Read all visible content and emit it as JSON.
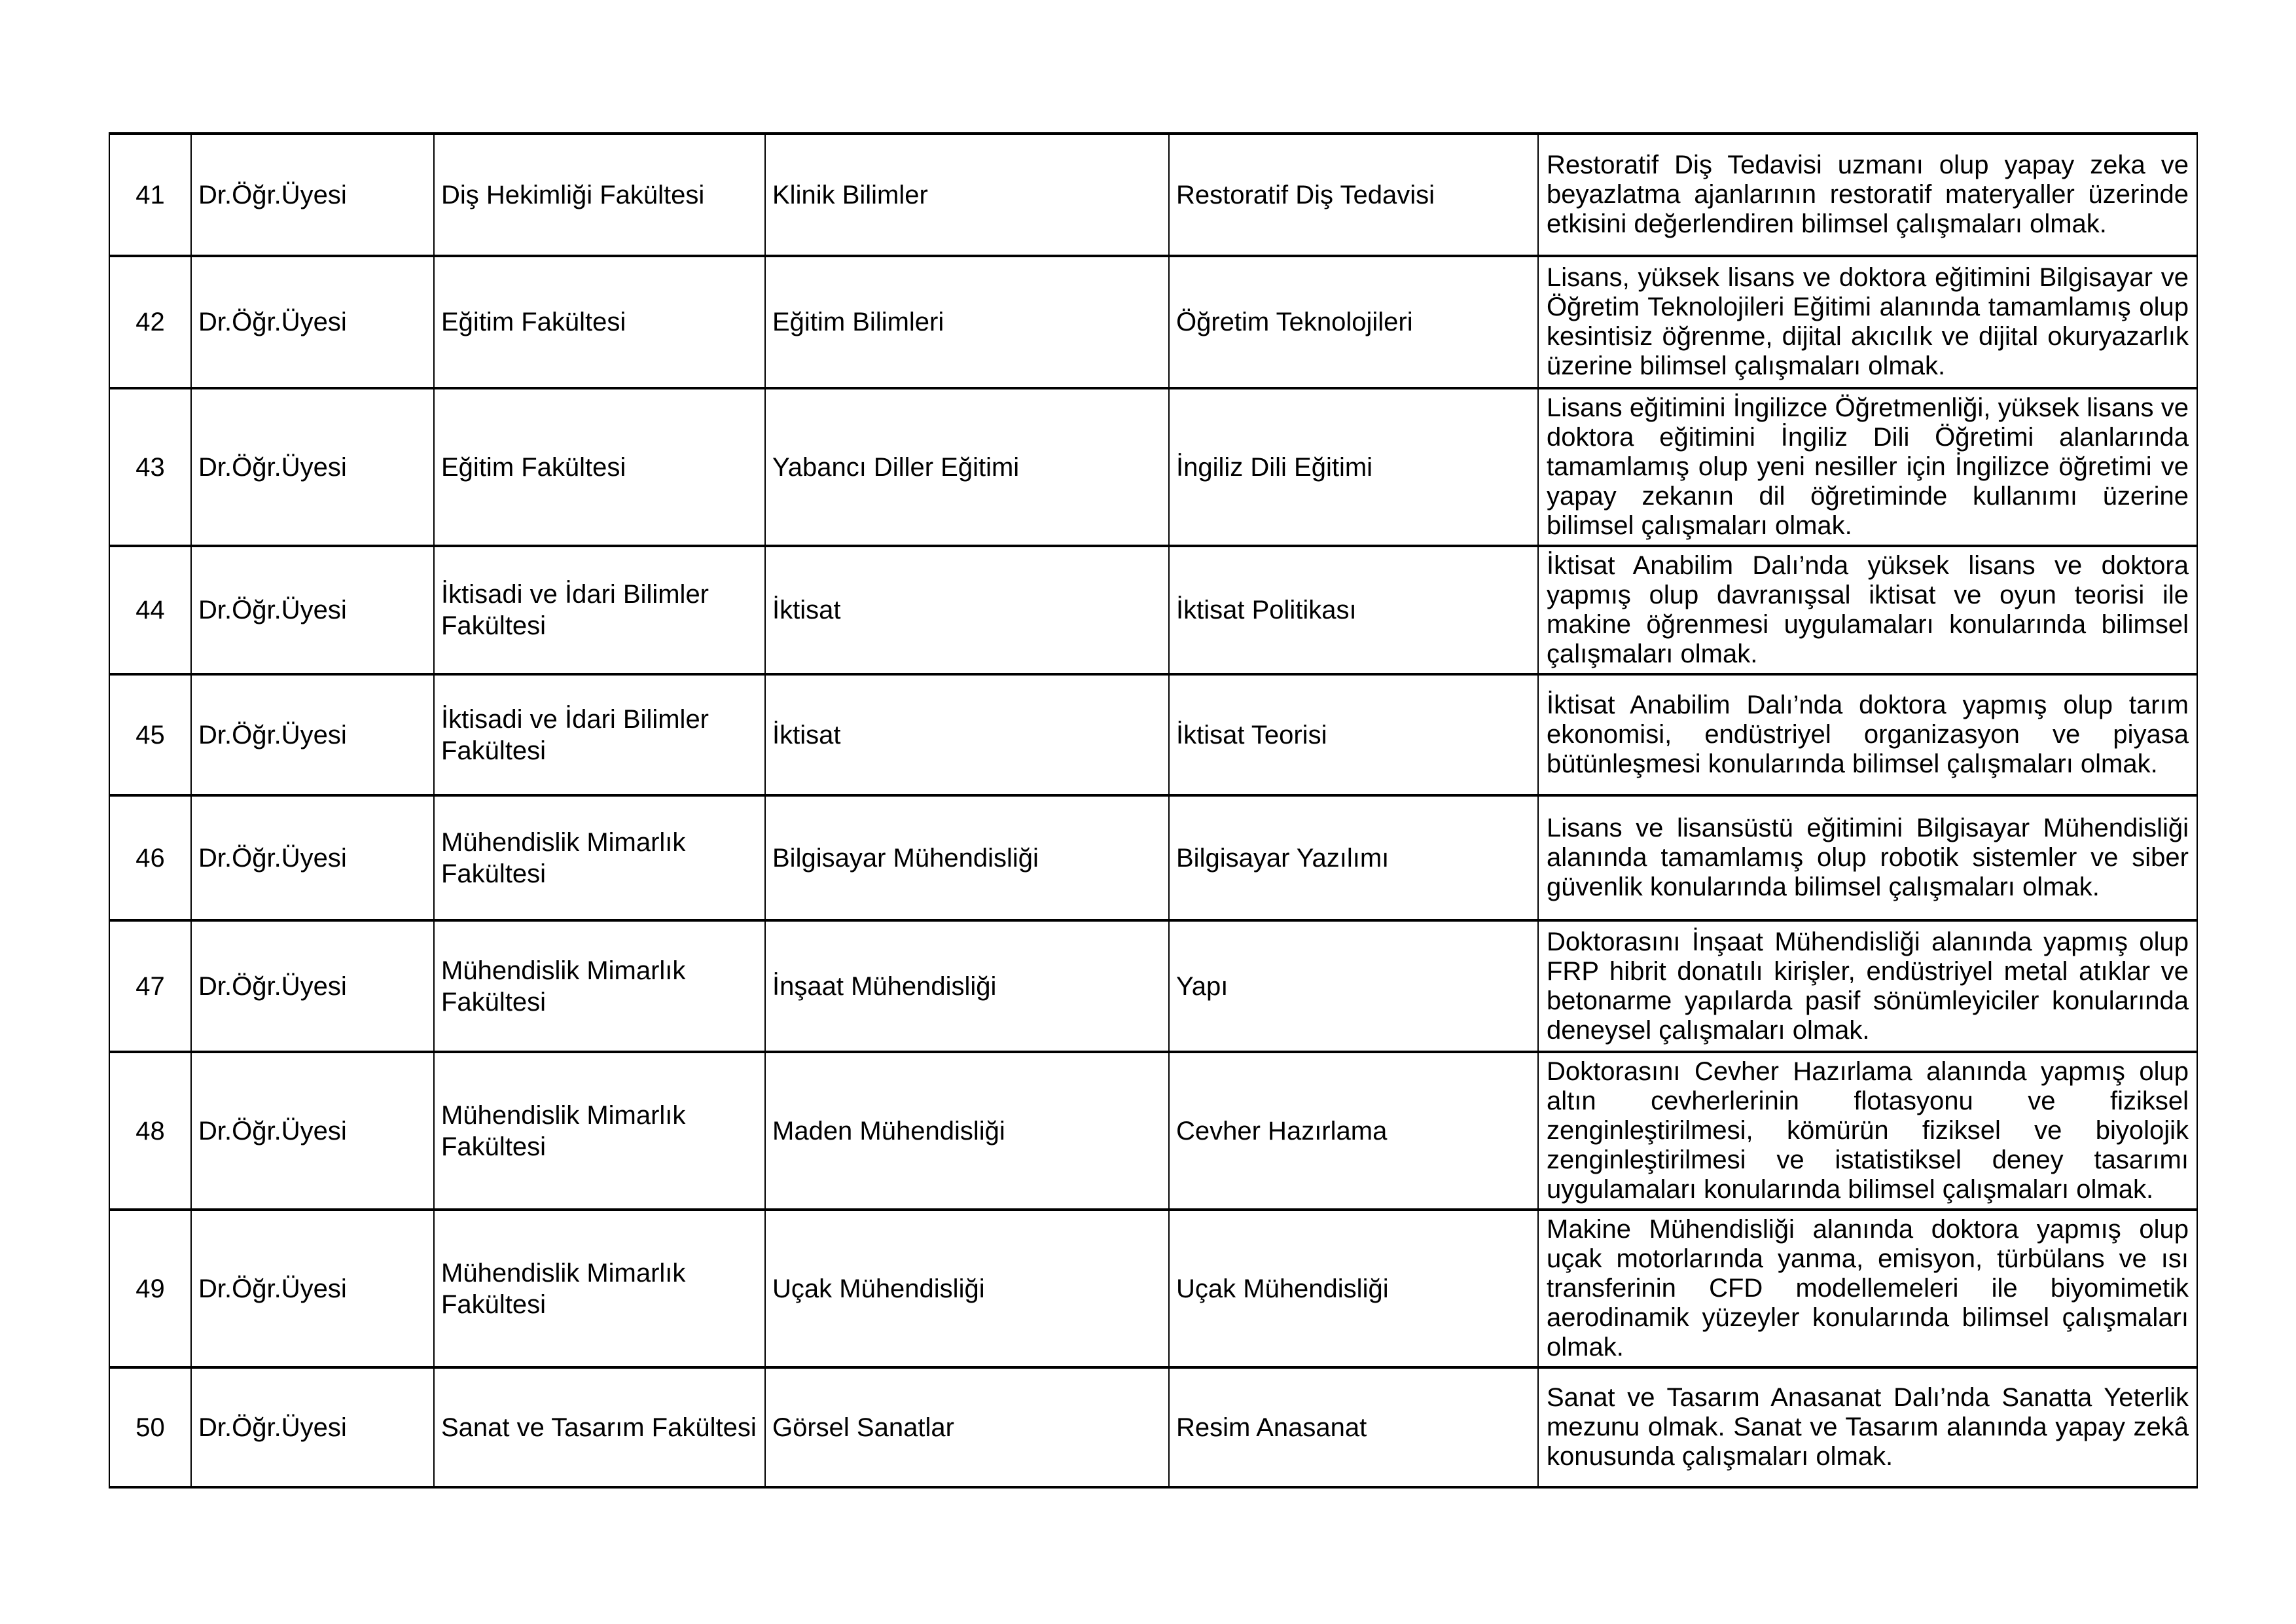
{
  "document": {
    "language": "tr",
    "colors": {
      "text": "#000000",
      "border": "#000000",
      "background": "#ffffff"
    }
  },
  "table": {
    "rows": [
      {
        "no": "41",
        "title": "Dr.Öğr.Üyesi",
        "faculty": "Diş Hekimliği Fakültesi",
        "department": "Klinik Bilimler",
        "field": "Restoratif Diş Tedavisi",
        "description": "Restoratif Diş Tedavisi uzmanı olup yapay zeka ve beyazlatma ajanlarının restoratif materyaller üzerinde etkisini değerlendiren bilimsel çalışmaları olmak."
      },
      {
        "no": "42",
        "title": "Dr.Öğr.Üyesi",
        "faculty": "Eğitim Fakültesi",
        "department": "Eğitim Bilimleri",
        "field": "Öğretim Teknolojileri",
        "description": "Lisans, yüksek lisans ve doktora eğitimini Bilgisayar ve Öğretim Teknolojileri Eğitimi alanında tamamlamış olup kesintisiz öğrenme, dijital akıcılık ve dijital okuryazarlık üzerine bilimsel çalışmaları olmak."
      },
      {
        "no": "43",
        "title": "Dr.Öğr.Üyesi",
        "faculty": "Eğitim Fakültesi",
        "department": "Yabancı Diller Eğitimi",
        "field": "İngiliz Dili Eğitimi",
        "description": "Lisans eğitimini İngilizce Öğretmenliği, yüksek lisans ve doktora eğitimini İngiliz Dili Öğretimi alanlarında tamamlamış olup yeni nesiller için İngilizce öğretimi ve yapay zekanın dil öğretiminde kullanımı üzerine bilimsel çalışmaları olmak."
      },
      {
        "no": "44",
        "title": "Dr.Öğr.Üyesi",
        "faculty": "İktisadi ve İdari Bilimler Fakültesi",
        "department": "İktisat",
        "field": "İktisat Politikası",
        "description": "İktisat Anabilim Dalı’nda yüksek lisans ve doktora yapmış olup davranışsal iktisat ve oyun teorisi ile makine öğrenmesi uygulamaları konularında bilimsel çalışmaları olmak."
      },
      {
        "no": "45",
        "title": "Dr.Öğr.Üyesi",
        "faculty": "İktisadi ve İdari Bilimler Fakültesi",
        "department": "İktisat",
        "field": "İktisat Teorisi",
        "description": "İktisat Anabilim Dalı’nda doktora yapmış olup tarım ekonomisi, endüstriyel organizasyon ve piyasa bütünleşmesi konularında bilimsel çalışmaları olmak."
      },
      {
        "no": "46",
        "title": "Dr.Öğr.Üyesi",
        "faculty": "Mühendislik Mimarlık Fakültesi",
        "department": "Bilgisayar Mühendisliği",
        "field": "Bilgisayar Yazılımı",
        "description": "Lisans ve lisansüstü eğitimini Bilgisayar Mühendisliği alanında tamamlamış olup robotik sistemler ve siber güvenlik konularında bilimsel çalışmaları olmak."
      },
      {
        "no": "47",
        "title": "Dr.Öğr.Üyesi",
        "faculty": "Mühendislik Mimarlık Fakültesi",
        "department": "İnşaat Mühendisliği",
        "field": "Yapı",
        "description": "Doktorasını İnşaat Mühendisliği alanında yapmış olup FRP hibrit donatılı kirişler, endüstriyel metal atıklar ve betonarme yapılarda pasif sönümleyiciler konularında deneysel çalışmaları olmak."
      },
      {
        "no": "48",
        "title": "Dr.Öğr.Üyesi",
        "faculty": "Mühendislik Mimarlık Fakültesi",
        "department": "Maden Mühendisliği",
        "field": "Cevher Hazırlama",
        "description": "Doktorasını Cevher Hazırlama alanında yapmış olup altın cevherlerinin flotasyonu ve fiziksel zenginleştirilmesi, kömürün fiziksel ve biyolojik zenginleştirilmesi ve istatistiksel deney tasarımı uygulamaları konularında bilimsel çalışmaları olmak."
      },
      {
        "no": "49",
        "title": "Dr.Öğr.Üyesi",
        "faculty": "Mühendislik Mimarlık Fakültesi",
        "department": "Uçak Mühendisliği",
        "field": "Uçak Mühendisliği",
        "description": "Makine Mühendisliği alanında doktora yapmış olup uçak motorlarında yanma, emisyon, türbülans ve ısı transferinin CFD modellemeleri ile biyomimetik aerodinamik yüzeyler konularında bilimsel çalışmaları olmak."
      },
      {
        "no": "50",
        "title": "Dr.Öğr.Üyesi",
        "faculty": "Sanat ve Tasarım Fakültesi",
        "department": "Görsel Sanatlar",
        "field": "Resim Anasanat",
        "description": "Sanat ve Tasarım Anasanat Dalı’nda Sanatta Yeterlik mezunu olmak. Sanat ve Tasarım alanında yapay zekâ konusunda çalışmaları olmak."
      }
    ]
  }
}
